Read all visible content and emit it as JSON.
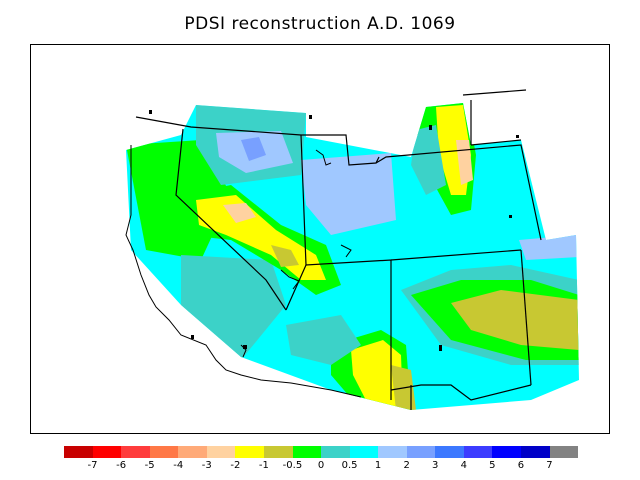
{
  "title": "PDSI reconstruction A.D. 1069",
  "legend": {
    "colors": [
      "#c80000",
      "#ff0000",
      "#ff3c3c",
      "#ff7846",
      "#ffaa78",
      "#ffd2a0",
      "#ffff00",
      "#c8c832",
      "#00ff00",
      "#3cd2c8",
      "#00ffff",
      "#a0c8ff",
      "#78a0ff",
      "#3c78ff",
      "#3c3cff",
      "#0000ff",
      "#0000c8",
      "#828282"
    ],
    "labels": [
      "-7",
      "-6",
      "-5",
      "-4",
      "-3",
      "-2",
      "-1",
      "-0.5",
      "0",
      "0.5",
      "1",
      "2",
      "3",
      "4",
      "5",
      "6",
      "7"
    ]
  },
  "map": {
    "region": "Western United States",
    "palette": {
      "dry_mod": "#ffd2a0",
      "dry_mild": "#ffff00",
      "dry_slight": "#c8c832",
      "neutral": "#00ff00",
      "wet_slight": "#3cd2c8",
      "wet_mild": "#00ffff",
      "wet_mod": "#a0c8ff",
      "wet_high": "#78a0ff"
    }
  }
}
